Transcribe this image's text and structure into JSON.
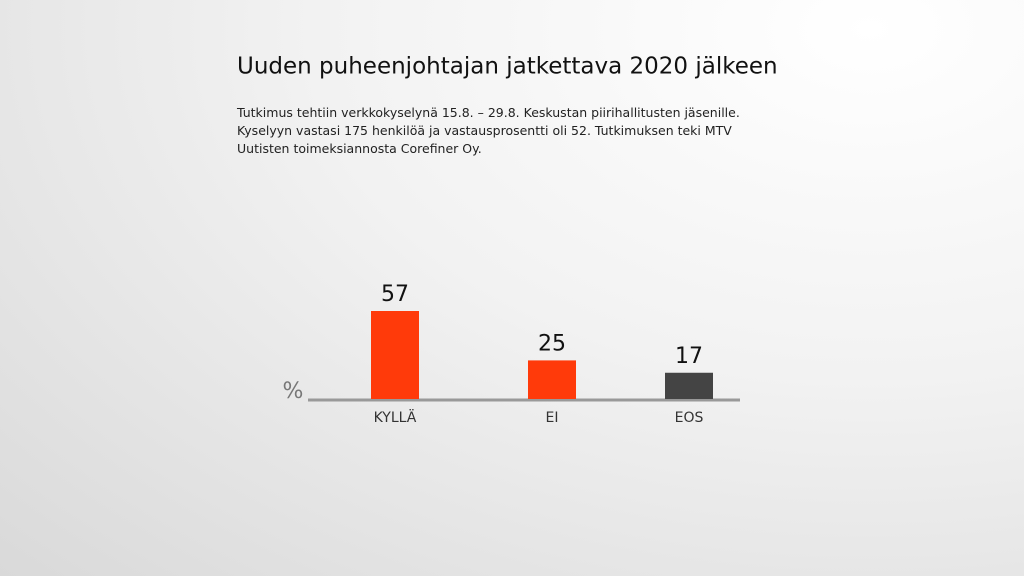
{
  "chart_data": {
    "type": "bar",
    "title": "Uuden puheenjohtajan jatkettava 2020 jälkeen",
    "subtitle": "Tutkimus tehtiin verkkokyselynä 15.8. – 29.8. Keskustan piirihallitusten jäsenille. Kyselyyn vastasi 175 henkilöä ja vastausprosentti oli 52. Tutkimuksen teki MTV Uutisten toimeksiannosta Corefiner Oy.",
    "y_label": "%",
    "categories": [
      "KYLLÄ",
      "EI",
      "EOS"
    ],
    "values": [
      57,
      25,
      17
    ],
    "colors": [
      "#ff3a0a",
      "#ff3a0a",
      "#444444"
    ]
  }
}
